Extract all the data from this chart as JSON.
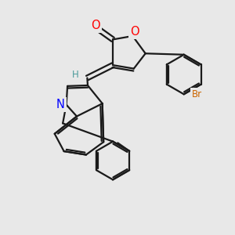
{
  "bg_color": "#e8e8e8",
  "line_color": "#1a1a1a",
  "bond_width": 1.6,
  "atom_colors": {
    "O": "#ff0000",
    "N": "#0000ff",
    "Br": "#cc6600",
    "H": "#4a9a9a",
    "C": "#1a1a1a"
  },
  "font_size": 8.5,
  "fig_size": [
    3.0,
    3.0
  ],
  "dpi": 100
}
